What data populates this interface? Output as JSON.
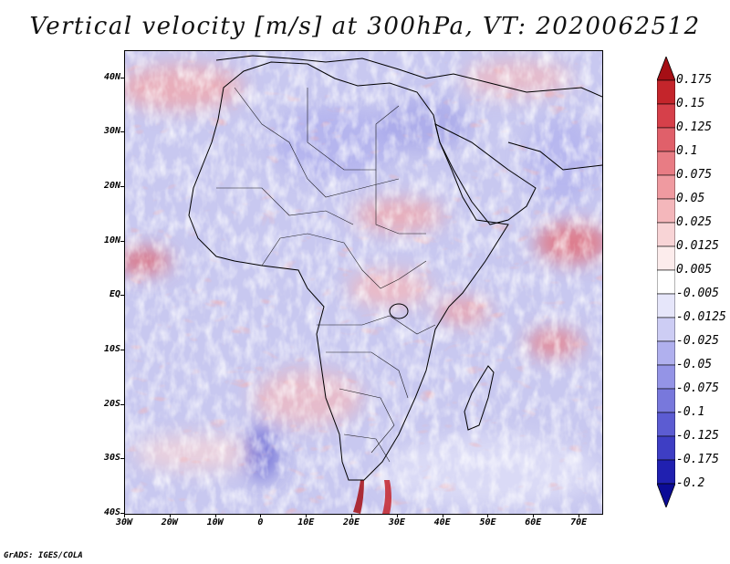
{
  "title": "Vertical velocity [m/s] at 300hPa, VT: 2020062512",
  "credit": "GrADS: IGES/COLA",
  "map": {
    "variable": "Vertical velocity",
    "units": "m/s",
    "level": "300hPa",
    "valid_time": "2020062512",
    "lon_range": [
      -30,
      75
    ],
    "lat_range": [
      -40,
      45
    ],
    "x_ticks": [
      {
        "lon": -30,
        "label": "30W"
      },
      {
        "lon": -20,
        "label": "20W"
      },
      {
        "lon": -10,
        "label": "10W"
      },
      {
        "lon": 0,
        "label": "0"
      },
      {
        "lon": 10,
        "label": "10E"
      },
      {
        "lon": 20,
        "label": "20E"
      },
      {
        "lon": 30,
        "label": "30E"
      },
      {
        "lon": 40,
        "label": "40E"
      },
      {
        "lon": 50,
        "label": "50E"
      },
      {
        "lon": 60,
        "label": "60E"
      },
      {
        "lon": 70,
        "label": "70E"
      }
    ],
    "y_ticks": [
      {
        "lat": 40,
        "label": "40N"
      },
      {
        "lat": 30,
        "label": "30N"
      },
      {
        "lat": 20,
        "label": "20N"
      },
      {
        "lat": 10,
        "label": "10N"
      },
      {
        "lat": 0,
        "label": "EQ"
      },
      {
        "lat": -10,
        "label": "10S"
      },
      {
        "lat": -20,
        "label": "20S"
      },
      {
        "lat": -30,
        "label": "30S"
      },
      {
        "lat": -40,
        "label": "40S"
      }
    ]
  },
  "colorbar": {
    "labels": [
      "0.175",
      "0.15",
      "0.125",
      "0.1",
      "0.075",
      "0.05",
      "0.025",
      "0.0125",
      "0.005",
      "-0.005",
      "-0.0125",
      "-0.025",
      "-0.05",
      "-0.075",
      "-0.1",
      "-0.125",
      "-0.175",
      "-0.2"
    ],
    "colors": [
      "#a50f15",
      "#c4252b",
      "#d6404a",
      "#e0606a",
      "#e87c84",
      "#ef9aa0",
      "#f4b7bb",
      "#f8d4d6",
      "#fcecec",
      "#ffffff",
      "#e6e6fa",
      "#cdcdf4",
      "#b0b0ee",
      "#9494e6",
      "#7878dc",
      "#5c5cd2",
      "#3e3ec4",
      "#2020b0",
      "#0c0c96"
    ]
  }
}
